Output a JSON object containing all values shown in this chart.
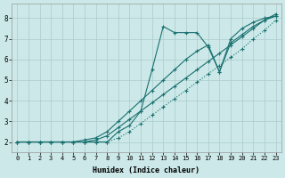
{
  "bg_color": "#cce8e8",
  "line_color": "#1a7070",
  "grid_color": "#aacccc",
  "xlabel": "Humidex (Indice chaleur)",
  "xlim": [
    -0.5,
    23.5
  ],
  "ylim": [
    1.5,
    8.7
  ],
  "yticks": [
    2,
    3,
    4,
    5,
    6,
    7,
    8
  ],
  "xticks": [
    0,
    1,
    2,
    3,
    4,
    5,
    6,
    7,
    8,
    9,
    10,
    11,
    12,
    13,
    14,
    15,
    16,
    17,
    18,
    19,
    20,
    21,
    22,
    23
  ],
  "line_dot_x": [
    0,
    1,
    2,
    3,
    4,
    5,
    6,
    7,
    8,
    9,
    10,
    11,
    12,
    13,
    14,
    15,
    16,
    17,
    18,
    19,
    20,
    21,
    22,
    23
  ],
  "line_dot_y": [
    2.0,
    2.0,
    2.0,
    2.0,
    2.0,
    2.0,
    2.0,
    2.0,
    2.0,
    2.2,
    2.5,
    2.9,
    3.3,
    3.7,
    4.1,
    4.5,
    4.9,
    5.3,
    5.7,
    6.1,
    6.5,
    7.0,
    7.4,
    7.9
  ],
  "line_diag1_x": [
    0,
    1,
    2,
    3,
    4,
    5,
    6,
    7,
    8,
    9,
    10,
    11,
    12,
    13,
    14,
    15,
    16,
    17,
    18,
    19,
    20,
    21,
    22,
    23
  ],
  "line_diag1_y": [
    2.0,
    2.0,
    2.0,
    2.0,
    2.0,
    2.0,
    2.0,
    2.1,
    2.3,
    2.7,
    3.1,
    3.5,
    3.9,
    4.3,
    4.7,
    5.1,
    5.5,
    5.9,
    6.3,
    6.7,
    7.1,
    7.5,
    7.9,
    8.1
  ],
  "line_diag2_x": [
    0,
    1,
    2,
    3,
    4,
    5,
    6,
    7,
    8,
    9,
    10,
    11,
    12,
    13,
    14,
    15,
    16,
    17,
    18,
    19,
    20,
    21,
    22,
    23
  ],
  "line_diag2_y": [
    2.0,
    2.0,
    2.0,
    2.0,
    2.0,
    2.0,
    2.1,
    2.2,
    2.5,
    3.0,
    3.5,
    4.0,
    4.5,
    5.0,
    5.5,
    6.0,
    6.4,
    6.7,
    5.4,
    6.8,
    7.2,
    7.6,
    7.9,
    8.2
  ],
  "line_zig_x": [
    0,
    1,
    2,
    3,
    4,
    5,
    6,
    7,
    8,
    9,
    10,
    11,
    12,
    13,
    14,
    15,
    16,
    17,
    18,
    19,
    20,
    21,
    22,
    23
  ],
  "line_zig_y": [
    2.0,
    2.0,
    2.0,
    2.0,
    2.0,
    2.0,
    2.0,
    2.0,
    2.0,
    2.5,
    2.8,
    3.5,
    5.5,
    7.6,
    7.3,
    7.3,
    7.3,
    6.6,
    5.4,
    7.0,
    7.5,
    7.8,
    8.0,
    8.1
  ]
}
